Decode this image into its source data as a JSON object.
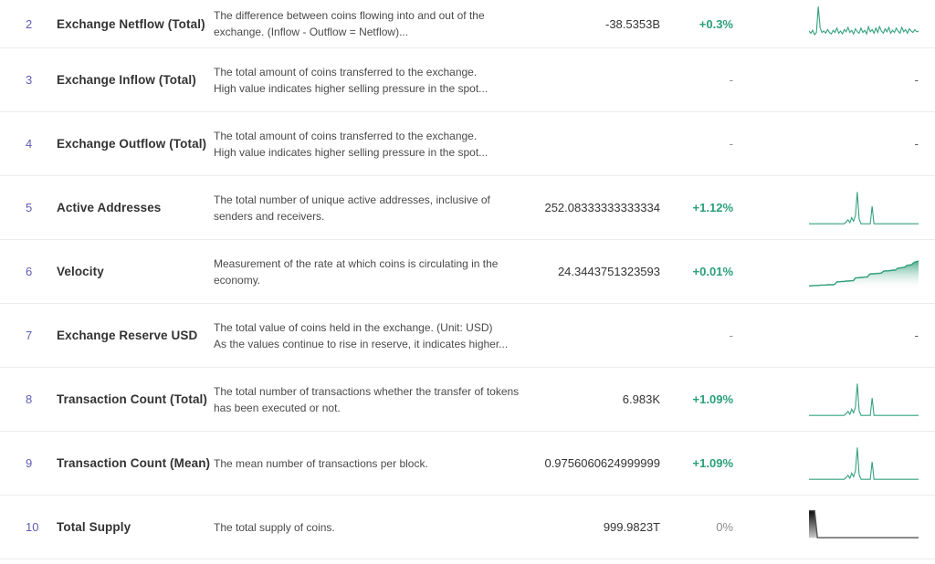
{
  "table": {
    "colors": {
      "index": "#5e5bb7",
      "name": "#333333",
      "description": "#4a4a4a",
      "value": "#333333",
      "positive": "#2aa077",
      "muted": "#8c8c8c",
      "divider": "#ececec",
      "spark_green": "#35a27c",
      "spark_dark": "#444444"
    },
    "rows": [
      {
        "num": "2",
        "name": "Exchange Netflow (Total)",
        "desc1": "The difference between coins flowing into and out of the",
        "desc2": "exchange. (Inflow - Outflow = Netflow)...",
        "value": "-38.5353B",
        "pct": "+0.3%",
        "pct_style": "green",
        "spark": "netflow",
        "chart_placeholder": ""
      },
      {
        "num": "3",
        "name": "Exchange Inflow (Total)",
        "desc1": "The total amount of coins transferred to the exchange.",
        "desc2": "High value indicates higher selling pressure in the spot...",
        "value": "",
        "pct": "-",
        "pct_style": "muted",
        "spark": null,
        "chart_placeholder": "-"
      },
      {
        "num": "4",
        "name": "Exchange Outflow (Total)",
        "desc1": "The total amount of coins transferred to the exchange.",
        "desc2": "High value indicates higher selling pressure in the spot...",
        "value": "",
        "pct": "-",
        "pct_style": "muted",
        "spark": null,
        "chart_placeholder": "-"
      },
      {
        "num": "5",
        "name": "Active Addresses",
        "desc1": "The total number of unique active addresses, inclusive of",
        "desc2": "senders and receivers.",
        "value": "252.08333333333334",
        "pct": "+1.12%",
        "pct_style": "green",
        "spark": "spikes",
        "chart_placeholder": ""
      },
      {
        "num": "6",
        "name": "Velocity",
        "desc1": "Measurement of the rate at which coins is circulating in the",
        "desc2": "economy.",
        "value": "24.3443751323593",
        "pct": "+0.01%",
        "pct_style": "green",
        "spark": "velocity",
        "chart_placeholder": ""
      },
      {
        "num": "7",
        "name": "Exchange Reserve USD",
        "desc1": "The total value of coins held in the exchange. (Unit: USD)",
        "desc2": "As the values continue to rise in reserve, it indicates higher...",
        "value": "",
        "pct": "-",
        "pct_style": "muted",
        "spark": null,
        "chart_placeholder": "-"
      },
      {
        "num": "8",
        "name": "Transaction Count (Total)",
        "desc1": "The total number of transactions whether the transfer of tokens",
        "desc2": "has been executed or not.",
        "value": "6.983K",
        "pct": "+1.09%",
        "pct_style": "green",
        "spark": "spikes",
        "chart_placeholder": ""
      },
      {
        "num": "9",
        "name": "Transaction Count (Mean)",
        "desc1": "The mean number of transactions per block.",
        "desc2": "",
        "value": "0.9756060624999999",
        "pct": "+1.09%",
        "pct_style": "green",
        "spark": "spikes",
        "chart_placeholder": ""
      },
      {
        "num": "10",
        "name": "Total Supply",
        "desc1": "The total supply of coins.",
        "desc2": "",
        "value": "999.9823T",
        "pct": "0%",
        "pct_style": "muted",
        "spark": "supply",
        "chart_placeholder": ""
      }
    ],
    "sparklines": {
      "netflow": {
        "type": "line",
        "stroke": "#35a27c",
        "points": [
          70,
          76,
          68,
          80,
          74,
          3,
          62,
          74,
          70,
          76,
          66,
          74,
          78,
          68,
          74,
          62,
          76,
          70,
          78,
          66,
          72,
          60,
          74,
          68,
          78,
          64,
          72,
          76,
          62,
          74,
          68,
          78,
          58,
          72,
          66,
          76,
          62,
          74,
          58,
          70,
          76,
          64,
          72,
          60,
          76,
          68,
          74,
          62,
          70,
          76,
          60,
          72,
          66,
          76,
          64,
          70,
          74,
          66,
          72,
          70
        ]
      },
      "spikes": {
        "type": "line",
        "stroke": "#35a27c",
        "points": [
          93,
          93,
          93,
          93,
          93,
          93,
          93,
          93,
          93,
          93,
          93,
          93,
          93,
          93,
          93,
          93,
          93,
          93,
          93,
          93,
          88,
          82,
          90,
          76,
          86,
          70,
          6,
          80,
          93,
          93,
          93,
          93,
          93,
          93,
          45,
          93,
          93,
          93,
          93,
          93,
          93,
          93,
          93,
          93,
          93,
          93,
          93,
          93,
          93,
          93,
          93,
          93,
          93,
          93,
          93,
          93,
          93,
          93,
          93,
          93
        ]
      },
      "velocity": {
        "type": "area",
        "stroke": "#2f9e78",
        "gradient_top": "rgba(47,158,120,0.85)",
        "gradient_bottom": "rgba(255,255,255,0)",
        "baseline": 100,
        "points": [
          88,
          88,
          87,
          87,
          87,
          86,
          86,
          86,
          85,
          85,
          85,
          84,
          77,
          77,
          76,
          76,
          75,
          75,
          74,
          74,
          66,
          66,
          65,
          65,
          64,
          64,
          56,
          55,
          55,
          54,
          54,
          53,
          48,
          47,
          47,
          46,
          45,
          45,
          40,
          39,
          38,
          37,
          32,
          31,
          30,
          24,
          22,
          20
        ]
      },
      "supply": {
        "type": "area",
        "stroke": "#555555",
        "gradient_top": "#0a0a0a",
        "gradient_bottom": "#c8c8c8",
        "baseline": 78,
        "points": [
          4,
          4,
          4,
          78,
          78,
          78,
          78,
          78,
          78,
          78,
          78,
          78,
          78,
          78,
          78,
          78,
          78,
          78,
          78,
          78,
          78,
          78,
          78,
          78,
          78,
          78,
          78,
          78,
          78,
          78,
          78,
          78,
          78,
          78,
          78,
          78,
          78,
          78,
          78,
          78
        ]
      }
    }
  }
}
